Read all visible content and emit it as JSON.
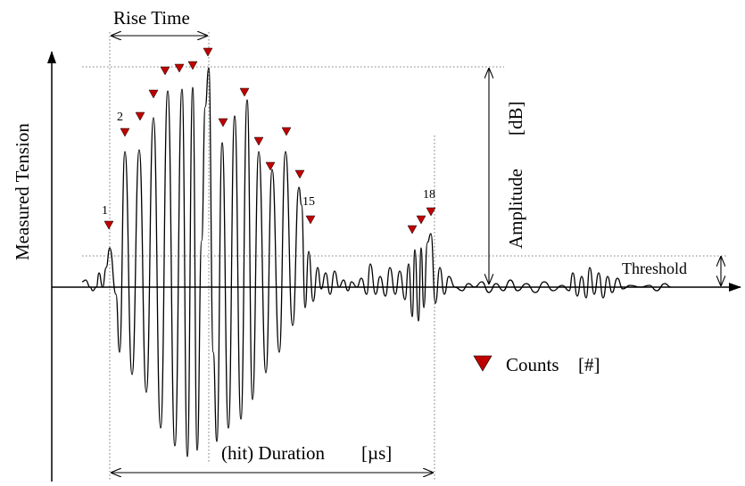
{
  "labels": {
    "y_axis": "Measured Tension",
    "rise_time": "Rise Time",
    "amplitude": "Amplitude",
    "amplitude_unit": "[dB]",
    "threshold": "Threshold",
    "duration": "(hit) Duration",
    "duration_unit": "[µs]",
    "counts": "Counts",
    "counts_unit": "[#]"
  },
  "count_numbers": [
    "1",
    "2",
    "15",
    "18"
  ],
  "colors": {
    "marker": "#c00000",
    "line": "#000000"
  }
}
